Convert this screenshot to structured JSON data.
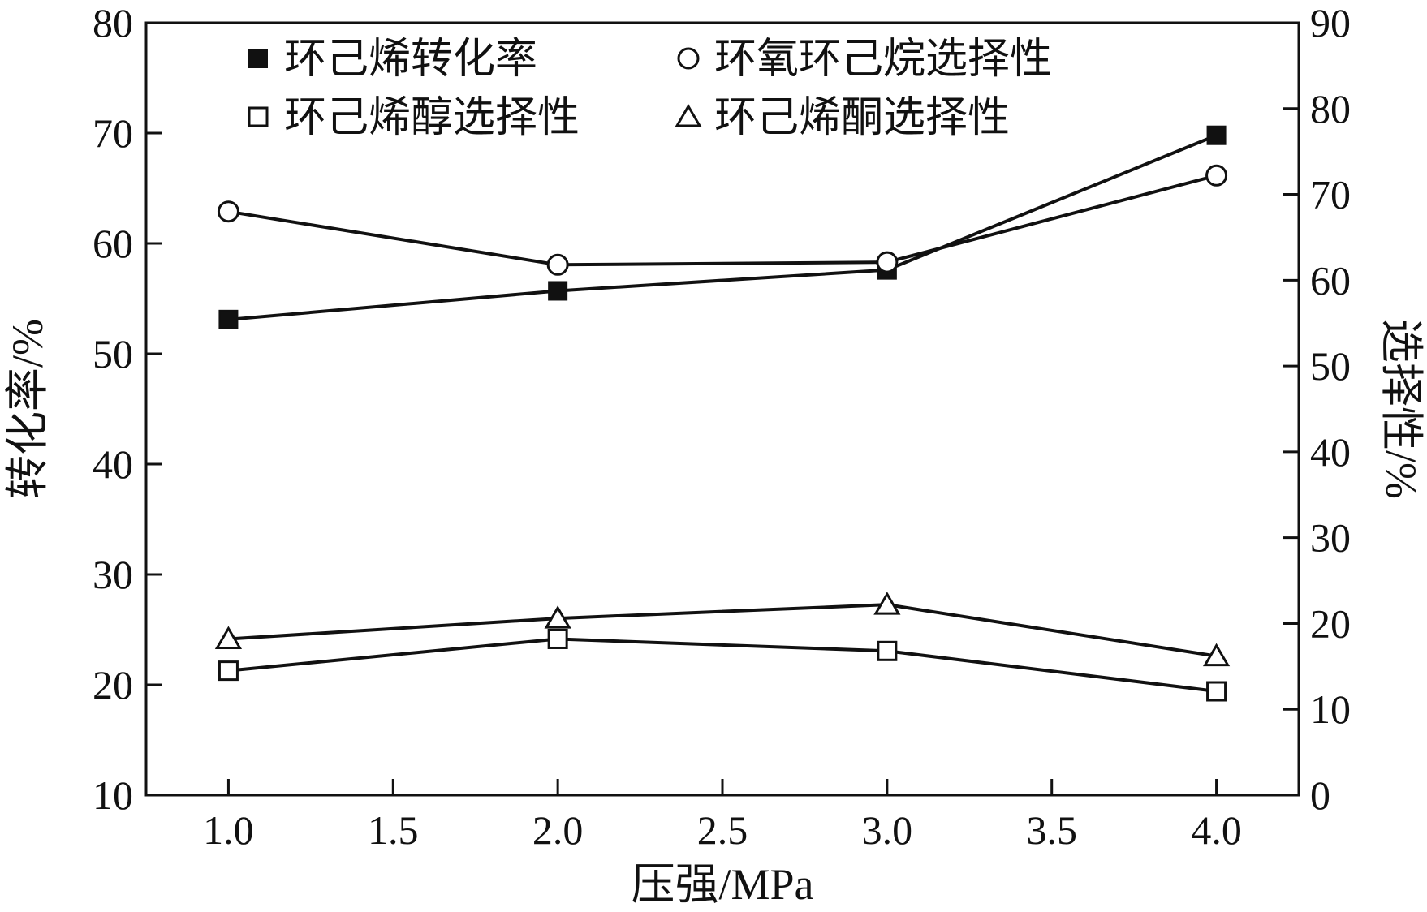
{
  "chart_data": {
    "type": "line",
    "title": "",
    "xlabel": "压强/MPa",
    "ylabel_left": "转化率/%",
    "ylabel_right": "选择性/%",
    "x": [
      1.0,
      2.0,
      3.0,
      4.0
    ],
    "xlim": [
      0.75,
      4.25
    ],
    "x_ticks": [
      "1.0",
      "1.5",
      "2.0",
      "2.5",
      "3.0",
      "3.5",
      "4.0"
    ],
    "ylim_left": [
      10,
      80
    ],
    "y_ticks_left": [
      "10",
      "20",
      "30",
      "40",
      "50",
      "60",
      "70",
      "80"
    ],
    "ylim_right": [
      0,
      90
    ],
    "y_ticks_right": [
      "0",
      "10",
      "20",
      "30",
      "40",
      "50",
      "60",
      "70",
      "80",
      "90"
    ],
    "grid": false,
    "legend_position": "top",
    "series": [
      {
        "name": "环己烯转化率",
        "axis": "left",
        "marker": "filled-square",
        "values": [
          53.1,
          55.7,
          57.6,
          69.8
        ]
      },
      {
        "name": "环氧环己烷选择性",
        "axis": "right",
        "marker": "open-circle",
        "values": [
          68,
          61.8,
          62.1,
          72.2
        ]
      },
      {
        "name": "环己烯醇选择性",
        "axis": "right",
        "marker": "open-square",
        "values": [
          14.5,
          18.2,
          16.8,
          12.1
        ]
      },
      {
        "name": "环己烯酮选择性",
        "axis": "right",
        "marker": "open-triangle",
        "values": [
          18.2,
          20.6,
          22.2,
          16.2
        ]
      }
    ]
  }
}
